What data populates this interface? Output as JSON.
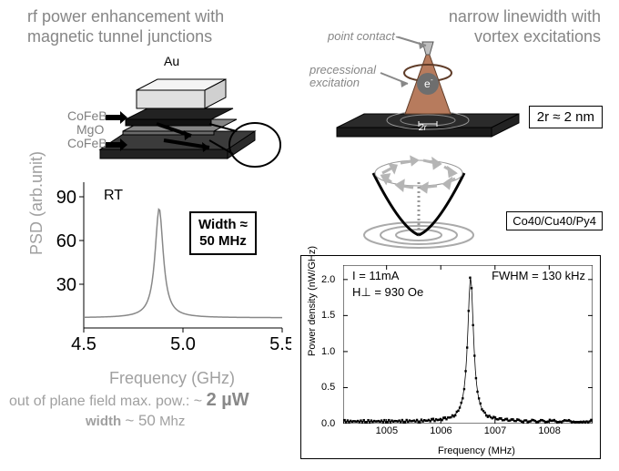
{
  "left": {
    "title_l1": "rf power enhancement with",
    "title_l2": "magnetic tunnel junctions",
    "mtj": {
      "top_label": "Au",
      "layer1": "CoFeB",
      "barrier": "MgO",
      "layer2": "CoFeB"
    },
    "psd_chart": {
      "type": "line-peak",
      "ylabel": "PSD (arb.unit)",
      "xlabel": "Frequency",
      "xunit": "(GHz)",
      "xlim": [
        4.5,
        5.5
      ],
      "xtick_vals": [
        4.5,
        5.0,
        5.5
      ],
      "ytick_vals": [
        30,
        60,
        90
      ],
      "ymax": 100,
      "peak_center": 4.88,
      "peak_height": 82,
      "peak_fwhm": 0.05,
      "baseline": 7,
      "rt_label": "RT",
      "line_color": "#888888",
      "axis_color": "#000000"
    },
    "width_box_l1": "Width  ≈",
    "width_box_l2": "50 MHz",
    "caption1_a": "out of plane field max. pow.: ~",
    "caption1_b": "2 µW",
    "caption2_a": "width",
    "caption2_b": "~ 50",
    "caption2_c": "Mhz"
  },
  "right": {
    "title_l1": "narrow linewidth with",
    "title_l2": "vortex excitations",
    "annot_point_contact": "point contact",
    "annot_precessional": "precessional",
    "annot_excitation": "excitation",
    "e_label": "e⁻",
    "r_label": "2r",
    "rad_box": "2r ≈ 2 nm",
    "stack_label": "Co40/Cu40/Py4",
    "fwhm_chart": {
      "type": "scatter-peak",
      "ylabel": "Power density (nW/GHz)",
      "xlabel": "Frequency (MHz)",
      "xlim": [
        1004.2,
        1008.8
      ],
      "xtick_vals": [
        1005,
        1006,
        1007,
        1008
      ],
      "ylim": [
        0.0,
        2.2
      ],
      "ytick_vals": [
        0.0,
        0.5,
        1.0,
        1.5,
        2.0
      ],
      "peak_center": 1006.55,
      "peak_height": 2.05,
      "fwhm_label": 0.13,
      "baseline": 0.03,
      "noise": 0.04,
      "marker_color": "#000000",
      "background_color": "#ffffff",
      "i_annot": "I = 11mA",
      "h_annot": "H⊥ = 930 Oe",
      "fwhm_annot": "FWHM = 130 kHz"
    }
  }
}
